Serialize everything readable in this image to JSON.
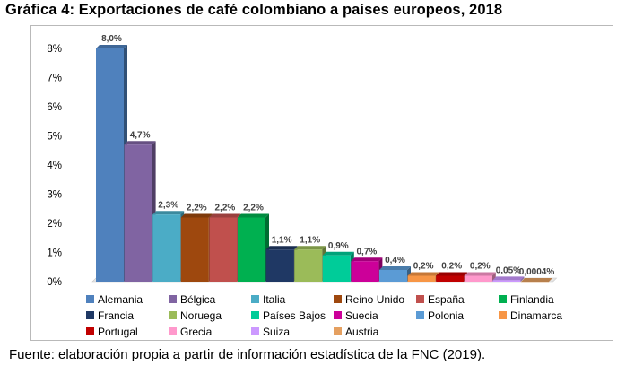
{
  "title": "Gráfica 4: Exportaciones de café colombiano a países europeos, 2018",
  "source": "Fuente: elaboración propia a partir de información estadística de la FNC (2019).",
  "chart_data": {
    "type": "bar",
    "title": "Gráfica 4: Exportaciones de café colombiano a países europeos, 2018",
    "xlabel": "",
    "ylabel": "",
    "ylim": [
      0,
      8
    ],
    "yticks": [
      "0%",
      "1%",
      "2%",
      "3%",
      "4%",
      "5%",
      "6%",
      "7%",
      "8%"
    ],
    "grid": false,
    "legend_position": "bottom",
    "categories": [
      "Alemania",
      "Bélgica",
      "Italia",
      "Reino Unido",
      "España",
      "Finlandia",
      "Francia",
      "Noruega",
      "Países Bajos",
      "Suecia",
      "Polonia",
      "Dinamarca",
      "Portugal",
      "Grecia",
      "Suiza",
      "Austria"
    ],
    "values": [
      8.0,
      4.7,
      2.3,
      2.2,
      2.2,
      2.2,
      1.1,
      1.1,
      0.9,
      0.7,
      0.4,
      0.2,
      0.2,
      0.2,
      0.05,
      0.0004
    ],
    "labels": [
      "8,0%",
      "4,7%",
      "2,3%",
      "2,2%",
      "2,2%",
      "2,2%",
      "1,1%",
      "1,1%",
      "0,9%",
      "0,7%",
      "0,4%",
      "0,2%",
      "0,2%",
      "0,2%",
      "0,05%",
      "0,0004%"
    ],
    "colors": [
      "#4f81bd",
      "#8064a2",
      "#4bacc6",
      "#9e480e",
      "#c0504d",
      "#00b050",
      "#1f3864",
      "#9bbb59",
      "#00cc99",
      "#cc0099",
      "#5b9bd5",
      "#f79646",
      "#c00000",
      "#ff99cc",
      "#cc99ff",
      "#e5a060"
    ]
  }
}
